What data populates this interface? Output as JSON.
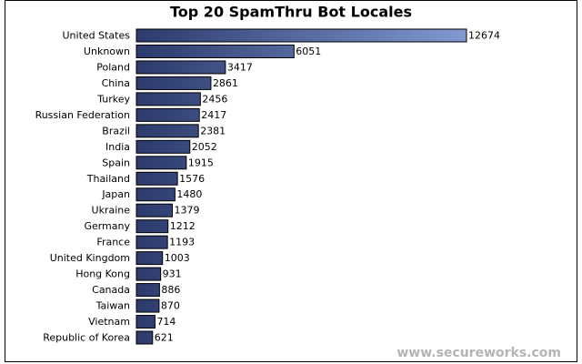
{
  "chart_data": {
    "type": "bar",
    "orientation": "horizontal",
    "title": "Top 20 SpamThru Bot Locales",
    "categories": [
      "United States",
      "Unknown",
      "Poland",
      "China",
      "Turkey",
      "Russian Federation",
      "Brazil",
      "India",
      "Spain",
      "Thailand",
      "Japan",
      "Ukraine",
      "Germany",
      "France",
      "United Kingdom",
      "Hong Kong",
      "Canada",
      "Taiwan",
      "Vietnam",
      "Republic of Korea"
    ],
    "values": [
      12674,
      6051,
      3417,
      2861,
      2456,
      2417,
      2381,
      2052,
      1915,
      1576,
      1480,
      1379,
      1212,
      1193,
      1003,
      931,
      886,
      870,
      714,
      621
    ],
    "color": "#2c3a6c",
    "watermark": "www.secureworks.com"
  }
}
